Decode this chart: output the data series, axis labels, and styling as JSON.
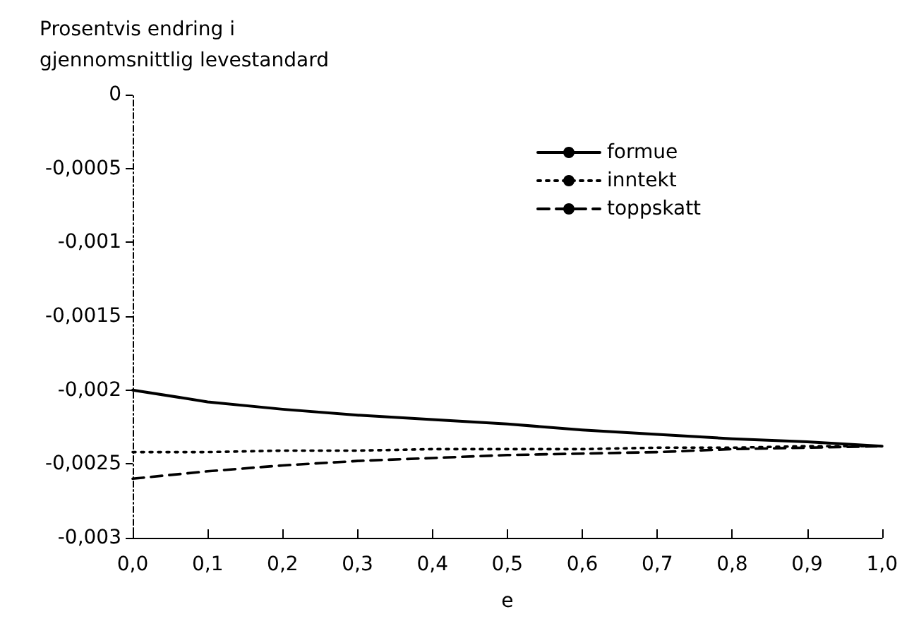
{
  "chart_data": {
    "type": "line",
    "ylabel": "Prosentvis endring i\ngjennomsnittlig levestandard",
    "xlabel": "e",
    "x": [
      0,
      0.1,
      0.2,
      0.3,
      0.4,
      0.5,
      0.6,
      0.7,
      0.8,
      0.9,
      1.0
    ],
    "series": [
      {
        "name": "formue",
        "color": "#000000",
        "line_style": "solid",
        "values": [
          -0.002,
          -0.00208,
          -0.00213,
          -0.00217,
          -0.0022,
          -0.00223,
          -0.00227,
          -0.0023,
          -0.00233,
          -0.00235,
          -0.00238
        ]
      },
      {
        "name": "inntekt",
        "color": "#000000",
        "line_style": "dotted",
        "values": [
          -0.00242,
          -0.00242,
          -0.00241,
          -0.00241,
          -0.0024,
          -0.0024,
          -0.0024,
          -0.00239,
          -0.00239,
          -0.00238,
          -0.00238
        ]
      },
      {
        "name": "toppskatt",
        "color": "#000000",
        "line_style": "dashed",
        "values": [
          -0.0026,
          -0.00255,
          -0.00251,
          -0.00248,
          -0.00246,
          -0.00244,
          -0.00243,
          -0.00242,
          -0.0024,
          -0.00239,
          -0.00238
        ]
      }
    ],
    "xlim": [
      0,
      1
    ],
    "xticks": [
      {
        "value": 0,
        "label": "0,0"
      },
      {
        "value": 0.1,
        "label": "0,1"
      },
      {
        "value": 0.2,
        "label": "0,2"
      },
      {
        "value": 0.3,
        "label": "0,3"
      },
      {
        "value": 0.4,
        "label": "0,4"
      },
      {
        "value": 0.5,
        "label": "0,5"
      },
      {
        "value": 0.6,
        "label": "0,6"
      },
      {
        "value": 0.7,
        "label": "0,7"
      },
      {
        "value": 0.8,
        "label": "0,8"
      },
      {
        "value": 0.9,
        "label": "0,9"
      },
      {
        "value": 1,
        "label": "1,0"
      }
    ],
    "ylim": [
      -0.003,
      0
    ],
    "yticks": [
      {
        "value": -0.003,
        "label": "-0,003"
      },
      {
        "value": -0.0025,
        "label": "-0,0025"
      },
      {
        "value": -0.002,
        "label": "-0,002"
      },
      {
        "value": -0.0015,
        "label": "-0,0015"
      },
      {
        "value": -0.001,
        "label": "-0,001"
      },
      {
        "value": -0.0005,
        "label": "-0,0005"
      },
      0
    ],
    "grid": false,
    "legend": "top right",
    "marker": "none"
  }
}
